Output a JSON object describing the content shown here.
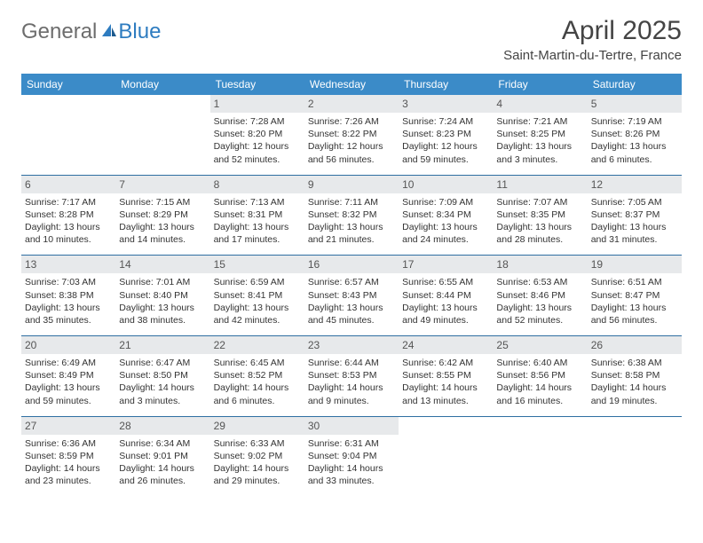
{
  "brand": {
    "part1": "General",
    "part2": "Blue"
  },
  "title": {
    "month": "April 2025",
    "location": "Saint-Martin-du-Tertre, France"
  },
  "colors": {
    "header_bg": "#3b8bc8",
    "header_text": "#ffffff",
    "daynum_bg": "#e7e9eb",
    "week_border": "#2f6fa2",
    "logo_gray": "#6d6d6d",
    "logo_blue": "#2e7cc0"
  },
  "dow": [
    "Sunday",
    "Monday",
    "Tuesday",
    "Wednesday",
    "Thursday",
    "Friday",
    "Saturday"
  ],
  "weeks": [
    [
      null,
      null,
      {
        "n": "1",
        "sr": "Sunrise: 7:28 AM",
        "ss": "Sunset: 8:20 PM",
        "dl": "Daylight: 12 hours and 52 minutes."
      },
      {
        "n": "2",
        "sr": "Sunrise: 7:26 AM",
        "ss": "Sunset: 8:22 PM",
        "dl": "Daylight: 12 hours and 56 minutes."
      },
      {
        "n": "3",
        "sr": "Sunrise: 7:24 AM",
        "ss": "Sunset: 8:23 PM",
        "dl": "Daylight: 12 hours and 59 minutes."
      },
      {
        "n": "4",
        "sr": "Sunrise: 7:21 AM",
        "ss": "Sunset: 8:25 PM",
        "dl": "Daylight: 13 hours and 3 minutes."
      },
      {
        "n": "5",
        "sr": "Sunrise: 7:19 AM",
        "ss": "Sunset: 8:26 PM",
        "dl": "Daylight: 13 hours and 6 minutes."
      }
    ],
    [
      {
        "n": "6",
        "sr": "Sunrise: 7:17 AM",
        "ss": "Sunset: 8:28 PM",
        "dl": "Daylight: 13 hours and 10 minutes."
      },
      {
        "n": "7",
        "sr": "Sunrise: 7:15 AM",
        "ss": "Sunset: 8:29 PM",
        "dl": "Daylight: 13 hours and 14 minutes."
      },
      {
        "n": "8",
        "sr": "Sunrise: 7:13 AM",
        "ss": "Sunset: 8:31 PM",
        "dl": "Daylight: 13 hours and 17 minutes."
      },
      {
        "n": "9",
        "sr": "Sunrise: 7:11 AM",
        "ss": "Sunset: 8:32 PM",
        "dl": "Daylight: 13 hours and 21 minutes."
      },
      {
        "n": "10",
        "sr": "Sunrise: 7:09 AM",
        "ss": "Sunset: 8:34 PM",
        "dl": "Daylight: 13 hours and 24 minutes."
      },
      {
        "n": "11",
        "sr": "Sunrise: 7:07 AM",
        "ss": "Sunset: 8:35 PM",
        "dl": "Daylight: 13 hours and 28 minutes."
      },
      {
        "n": "12",
        "sr": "Sunrise: 7:05 AM",
        "ss": "Sunset: 8:37 PM",
        "dl": "Daylight: 13 hours and 31 minutes."
      }
    ],
    [
      {
        "n": "13",
        "sr": "Sunrise: 7:03 AM",
        "ss": "Sunset: 8:38 PM",
        "dl": "Daylight: 13 hours and 35 minutes."
      },
      {
        "n": "14",
        "sr": "Sunrise: 7:01 AM",
        "ss": "Sunset: 8:40 PM",
        "dl": "Daylight: 13 hours and 38 minutes."
      },
      {
        "n": "15",
        "sr": "Sunrise: 6:59 AM",
        "ss": "Sunset: 8:41 PM",
        "dl": "Daylight: 13 hours and 42 minutes."
      },
      {
        "n": "16",
        "sr": "Sunrise: 6:57 AM",
        "ss": "Sunset: 8:43 PM",
        "dl": "Daylight: 13 hours and 45 minutes."
      },
      {
        "n": "17",
        "sr": "Sunrise: 6:55 AM",
        "ss": "Sunset: 8:44 PM",
        "dl": "Daylight: 13 hours and 49 minutes."
      },
      {
        "n": "18",
        "sr": "Sunrise: 6:53 AM",
        "ss": "Sunset: 8:46 PM",
        "dl": "Daylight: 13 hours and 52 minutes."
      },
      {
        "n": "19",
        "sr": "Sunrise: 6:51 AM",
        "ss": "Sunset: 8:47 PM",
        "dl": "Daylight: 13 hours and 56 minutes."
      }
    ],
    [
      {
        "n": "20",
        "sr": "Sunrise: 6:49 AM",
        "ss": "Sunset: 8:49 PM",
        "dl": "Daylight: 13 hours and 59 minutes."
      },
      {
        "n": "21",
        "sr": "Sunrise: 6:47 AM",
        "ss": "Sunset: 8:50 PM",
        "dl": "Daylight: 14 hours and 3 minutes."
      },
      {
        "n": "22",
        "sr": "Sunrise: 6:45 AM",
        "ss": "Sunset: 8:52 PM",
        "dl": "Daylight: 14 hours and 6 minutes."
      },
      {
        "n": "23",
        "sr": "Sunrise: 6:44 AM",
        "ss": "Sunset: 8:53 PM",
        "dl": "Daylight: 14 hours and 9 minutes."
      },
      {
        "n": "24",
        "sr": "Sunrise: 6:42 AM",
        "ss": "Sunset: 8:55 PM",
        "dl": "Daylight: 14 hours and 13 minutes."
      },
      {
        "n": "25",
        "sr": "Sunrise: 6:40 AM",
        "ss": "Sunset: 8:56 PM",
        "dl": "Daylight: 14 hours and 16 minutes."
      },
      {
        "n": "26",
        "sr": "Sunrise: 6:38 AM",
        "ss": "Sunset: 8:58 PM",
        "dl": "Daylight: 14 hours and 19 minutes."
      }
    ],
    [
      {
        "n": "27",
        "sr": "Sunrise: 6:36 AM",
        "ss": "Sunset: 8:59 PM",
        "dl": "Daylight: 14 hours and 23 minutes."
      },
      {
        "n": "28",
        "sr": "Sunrise: 6:34 AM",
        "ss": "Sunset: 9:01 PM",
        "dl": "Daylight: 14 hours and 26 minutes."
      },
      {
        "n": "29",
        "sr": "Sunrise: 6:33 AM",
        "ss": "Sunset: 9:02 PM",
        "dl": "Daylight: 14 hours and 29 minutes."
      },
      {
        "n": "30",
        "sr": "Sunrise: 6:31 AM",
        "ss": "Sunset: 9:04 PM",
        "dl": "Daylight: 14 hours and 33 minutes."
      },
      null,
      null,
      null
    ]
  ]
}
